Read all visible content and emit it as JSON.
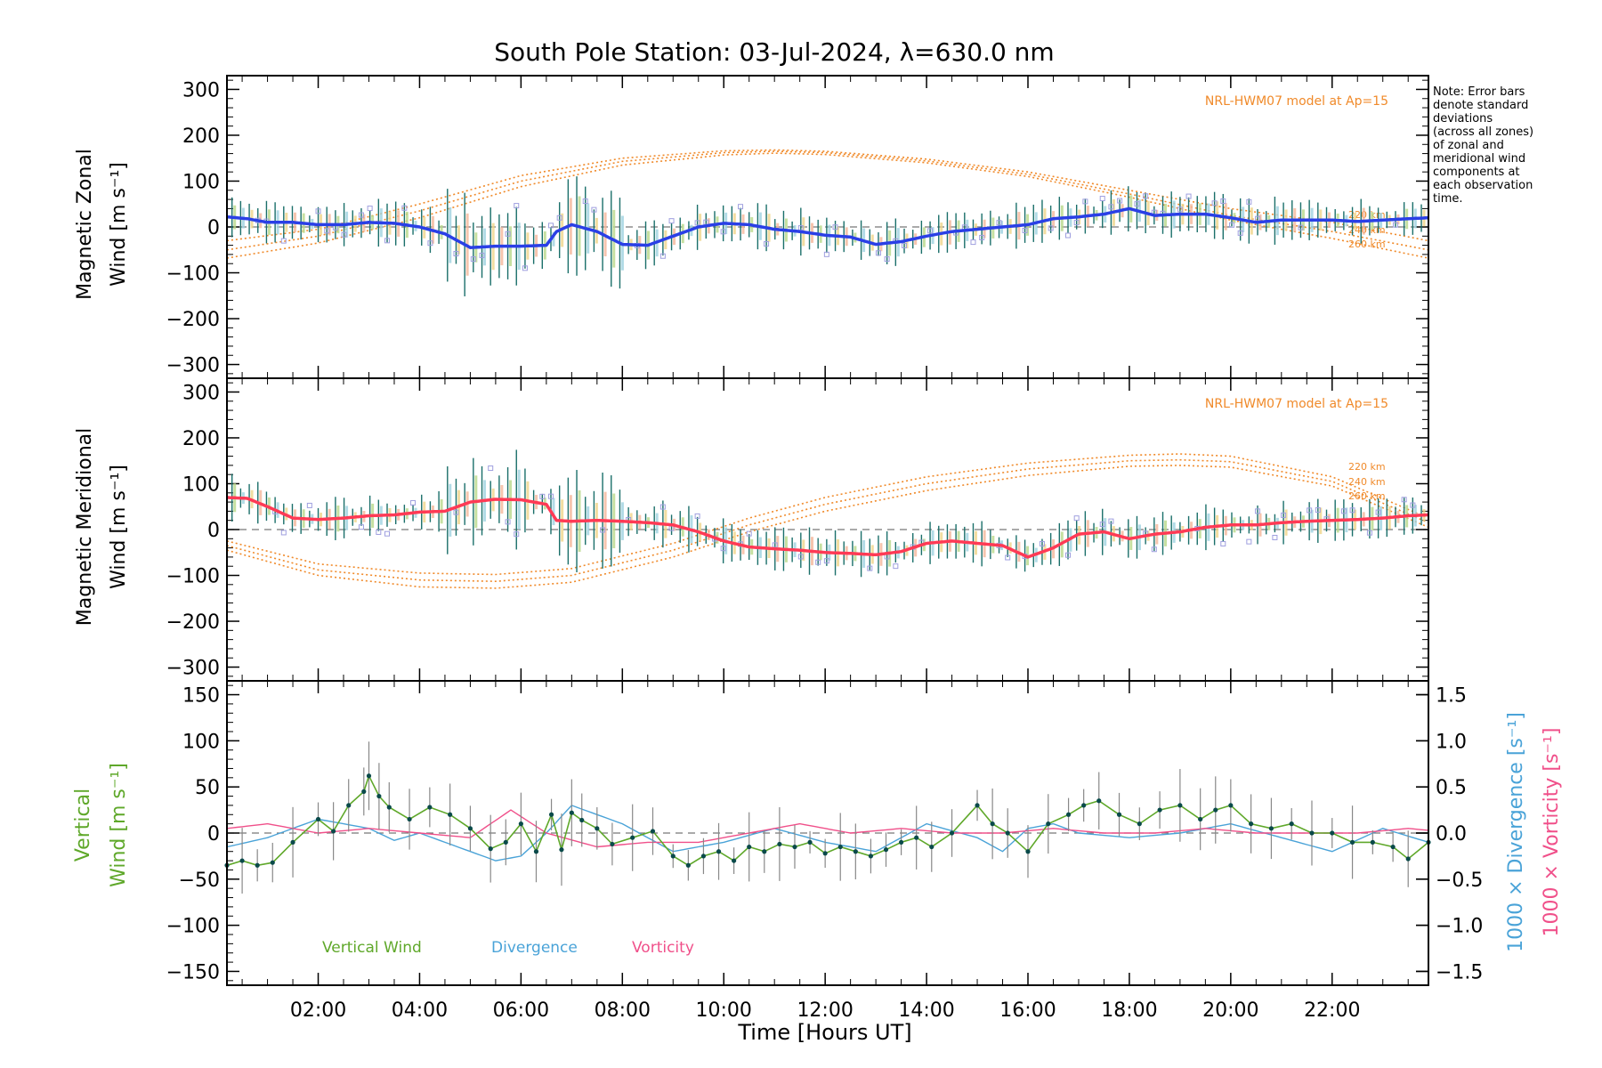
{
  "title": "South Pole Station: 03-Jul-2024, λ=630.0 nm",
  "note_lines": [
    "Note: Error bars",
    "denote standard",
    "deviations",
    "(across all zones)",
    "of zonal and",
    "meridional wind",
    "components at",
    "each observation",
    "time."
  ],
  "colors": {
    "zonal": "#2a3fe6",
    "zonal_light": "#4fa8d8",
    "meridional": "#ff3a55",
    "vertical": "#5fa82a",
    "divergence": "#4aa3d8",
    "vorticity": "#f0508a",
    "model": "#f08a2a",
    "points": "#9f9fdf",
    "markers": "#0a4a4a"
  },
  "chart_data": [
    {
      "type": "line",
      "title": "South Pole Station: 03-Jul-2024, λ=630.0 nm",
      "ylabel_lines": [
        "Magnetic Zonal",
        "Wind [m s⁻¹]"
      ],
      "xlabel": "",
      "ylim": [
        -330,
        330
      ],
      "yticks": [
        -300,
        -200,
        -100,
        0,
        100,
        200,
        300
      ],
      "ytick_labels": [
        "−300",
        "−200",
        "−100",
        "0",
        "100",
        "200",
        "300"
      ],
      "xlim": [
        0.2,
        23.9
      ],
      "model_label": "NRL-HWM07 model at Ap=15",
      "altitude_labels": [
        "220 km",
        "240 km",
        "260 km"
      ],
      "series": [
        {
          "name": "Magnetic Zonal Wind",
          "x": [
            0.2,
            0.6,
            1.0,
            1.5,
            2.0,
            2.5,
            3.0,
            3.5,
            4.0,
            4.5,
            5.0,
            5.5,
            6.0,
            6.5,
            6.7,
            7.0,
            7.5,
            8.0,
            8.5,
            9.0,
            9.5,
            10.0,
            10.5,
            11.0,
            11.5,
            12.0,
            12.5,
            13.0,
            13.5,
            14.0,
            14.5,
            15.0,
            15.5,
            16.0,
            16.5,
            17.0,
            17.5,
            18.0,
            18.5,
            19.0,
            19.5,
            20.0,
            20.5,
            21.0,
            21.5,
            22.0,
            22.5,
            23.0,
            23.5,
            23.9
          ],
          "values": [
            22,
            18,
            10,
            10,
            5,
            5,
            10,
            8,
            0,
            -15,
            -45,
            -42,
            -42,
            -40,
            -10,
            5,
            -10,
            -38,
            -40,
            -20,
            0,
            8,
            5,
            -5,
            -10,
            -18,
            -22,
            -38,
            -32,
            -20,
            -10,
            -5,
            0,
            5,
            18,
            22,
            28,
            40,
            25,
            28,
            28,
            20,
            10,
            15,
            15,
            15,
            12,
            15,
            18,
            20
          ]
        },
        {
          "name": "Model 220 km",
          "x": [
            0.2,
            2.0,
            4.0,
            6.0,
            8.0,
            10.0,
            11.0,
            12.0,
            14.0,
            16.0,
            18.0,
            20.0,
            22.0,
            23.9
          ],
          "values": [
            -30,
            -5,
            50,
            112,
            150,
            166,
            168,
            165,
            148,
            120,
            80,
            40,
            10,
            -30
          ]
        },
        {
          "name": "Model 240 km",
          "x": [
            0.2,
            2.0,
            4.0,
            6.0,
            8.0,
            10.0,
            11.0,
            12.0,
            14.0,
            16.0,
            18.0,
            20.0,
            22.0,
            23.9
          ],
          "values": [
            -50,
            -20,
            35,
            100,
            143,
            162,
            165,
            162,
            144,
            115,
            72,
            25,
            -10,
            -50
          ]
        },
        {
          "name": "Model 260 km",
          "x": [
            0.2,
            2.0,
            4.0,
            6.0,
            8.0,
            10.0,
            11.0,
            12.0,
            14.0,
            16.0,
            18.0,
            20.0,
            22.0,
            23.9
          ],
          "values": [
            -68,
            -35,
            20,
            88,
            135,
            157,
            161,
            158,
            140,
            110,
            65,
            15,
            -25,
            -68
          ]
        }
      ]
    },
    {
      "type": "line",
      "ylabel_lines": [
        "Magnetic Meridional",
        "Wind [m s⁻¹]"
      ],
      "ylim": [
        -330,
        330
      ],
      "yticks": [
        -300,
        -200,
        -100,
        0,
        100,
        200,
        300
      ],
      "ytick_labels": [
        "−300",
        "−200",
        "−100",
        "0",
        "100",
        "200",
        "300"
      ],
      "xlim": [
        0.2,
        23.9
      ],
      "model_label": "NRL-HWM07 model at Ap=15",
      "altitude_labels": [
        "220 km",
        "240 km",
        "260 km"
      ],
      "series": [
        {
          "name": "Magnetic Meridional Wind",
          "x": [
            0.2,
            0.6,
            1.0,
            1.5,
            2.0,
            2.5,
            3.0,
            3.5,
            4.0,
            4.5,
            5.0,
            5.5,
            6.0,
            6.5,
            6.7,
            7.0,
            7.5,
            8.0,
            8.5,
            9.0,
            9.5,
            10.0,
            10.5,
            11.0,
            11.5,
            12.0,
            12.5,
            13.0,
            13.5,
            14.0,
            14.5,
            15.0,
            15.5,
            16.0,
            16.5,
            17.0,
            17.5,
            18.0,
            18.5,
            19.0,
            19.5,
            20.0,
            20.5,
            21.0,
            21.5,
            22.0,
            22.5,
            23.0,
            23.5,
            23.9
          ],
          "values": [
            70,
            68,
            50,
            25,
            22,
            25,
            30,
            32,
            38,
            40,
            60,
            66,
            65,
            55,
            20,
            18,
            20,
            18,
            15,
            10,
            -5,
            -25,
            -38,
            -42,
            -45,
            -50,
            -52,
            -55,
            -48,
            -30,
            -25,
            -30,
            -35,
            -60,
            -40,
            -10,
            -5,
            -20,
            -10,
            -5,
            5,
            10,
            10,
            15,
            18,
            20,
            22,
            25,
            30,
            32
          ]
        },
        {
          "name": "Model 220 km",
          "x": [
            0.2,
            2.0,
            4.0,
            5.5,
            7.0,
            9.0,
            10.5,
            12.0,
            14.0,
            16.0,
            18.0,
            19.0,
            20.0,
            22.0,
            23.9
          ],
          "values": [
            -25,
            -75,
            -95,
            -98,
            -85,
            -30,
            25,
            70,
            115,
            145,
            162,
            165,
            160,
            115,
            25
          ]
        },
        {
          "name": "Model 240 km",
          "x": [
            0.2,
            2.0,
            4.0,
            5.5,
            7.0,
            9.0,
            10.5,
            12.0,
            14.0,
            16.0,
            18.0,
            19.0,
            20.0,
            22.0,
            23.9
          ],
          "values": [
            -35,
            -88,
            -110,
            -113,
            -100,
            -45,
            10,
            55,
            100,
            132,
            150,
            152,
            148,
            105,
            15
          ]
        },
        {
          "name": "Model 260 km",
          "x": [
            0.2,
            2.0,
            4.0,
            5.5,
            7.0,
            9.0,
            10.5,
            12.0,
            14.0,
            16.0,
            18.0,
            19.0,
            20.0,
            22.0,
            23.9
          ],
          "values": [
            -45,
            -100,
            -125,
            -128,
            -115,
            -60,
            -5,
            40,
            85,
            118,
            138,
            140,
            136,
            95,
            5
          ]
        }
      ]
    },
    {
      "type": "line",
      "xlabel": "Time [Hours UT]",
      "ylabel_lines": [
        "Vertical",
        "Wind [m s⁻¹]"
      ],
      "ylabel_right": [
        "1000 × Divergence [s⁻¹]",
        "1000 × Vorticity [s⁻¹]"
      ],
      "ylim": [
        -165,
        165
      ],
      "yticks": [
        -150,
        -100,
        -50,
        0,
        50,
        100,
        150
      ],
      "ytick_labels": [
        "−150",
        "−100",
        "−50",
        "0",
        "50",
        "100",
        "150"
      ],
      "ylim_right": [
        -1.65,
        1.65
      ],
      "yticks_right": [
        -1.5,
        -1.0,
        -0.5,
        0.0,
        0.5,
        1.0,
        1.5
      ],
      "ytick_labels_right": [
        "−1.5",
        "−1.0",
        "−0.5",
        "0.0",
        "0.5",
        "1.0",
        "1.5"
      ],
      "xlim": [
        0.2,
        23.9
      ],
      "xticks": [
        2,
        4,
        6,
        8,
        10,
        12,
        14,
        16,
        18,
        20,
        22
      ],
      "xtick_labels": [
        "02:00",
        "04:00",
        "06:00",
        "08:00",
        "10:00",
        "12:00",
        "14:00",
        "16:00",
        "18:00",
        "20:00",
        "22:00"
      ],
      "legend": [
        "Vertical Wind",
        "Divergence",
        "Vorticity"
      ],
      "series": [
        {
          "name": "Vertical Wind",
          "x": [
            0.2,
            0.5,
            0.8,
            1.1,
            1.5,
            2.0,
            2.3,
            2.6,
            2.9,
            3.0,
            3.2,
            3.4,
            3.8,
            4.2,
            4.6,
            5.0,
            5.4,
            5.7,
            6.0,
            6.3,
            6.6,
            6.8,
            7.0,
            7.2,
            7.5,
            7.8,
            8.2,
            8.6,
            9.0,
            9.3,
            9.6,
            9.9,
            10.2,
            10.5,
            10.8,
            11.1,
            11.4,
            11.7,
            12.0,
            12.3,
            12.6,
            12.9,
            13.2,
            13.5,
            13.8,
            14.1,
            14.5,
            15.0,
            15.3,
            15.6,
            16.0,
            16.4,
            16.8,
            17.1,
            17.4,
            17.8,
            18.2,
            18.6,
            19.0,
            19.4,
            19.7,
            20.0,
            20.4,
            20.8,
            21.2,
            21.6,
            22.0,
            22.4,
            22.8,
            23.2,
            23.5,
            23.9
          ],
          "values": [
            -35,
            -30,
            -35,
            -32,
            -10,
            15,
            2,
            30,
            45,
            62,
            40,
            28,
            15,
            28,
            20,
            5,
            -17,
            -10,
            10,
            -20,
            20,
            -18,
            22,
            14,
            5,
            -12,
            -5,
            2,
            -25,
            -35,
            -25,
            -20,
            -30,
            -15,
            -20,
            -12,
            -15,
            -10,
            -22,
            -15,
            -20,
            -25,
            -18,
            -10,
            -5,
            -15,
            0,
            30,
            10,
            0,
            -20,
            10,
            20,
            30,
            35,
            20,
            10,
            25,
            30,
            15,
            25,
            30,
            10,
            5,
            10,
            0,
            0,
            -10,
            -10,
            -15,
            -28,
            -10
          ]
        },
        {
          "name": "Divergence",
          "x": [
            0.2,
            1.0,
            2.0,
            3.0,
            3.5,
            4.0,
            5.0,
            5.5,
            6.0,
            6.5,
            7.0,
            7.5,
            8.0,
            9.0,
            10.0,
            11.0,
            12.0,
            13.0,
            14.0,
            15.0,
            15.5,
            16.0,
            16.5,
            17.0,
            18.0,
            19.0,
            20.0,
            21.0,
            22.0,
            23.0,
            23.9
          ],
          "values": [
            -0.15,
            -0.05,
            0.15,
            0.05,
            -0.08,
            0.0,
            -0.2,
            -0.3,
            -0.25,
            0.0,
            0.3,
            0.2,
            0.1,
            -0.2,
            -0.1,
            0.05,
            -0.1,
            -0.2,
            0.1,
            -0.05,
            -0.2,
            0.05,
            0.1,
            0.0,
            -0.05,
            0.0,
            0.1,
            -0.05,
            -0.2,
            0.05,
            -0.1
          ]
        },
        {
          "name": "Vorticity",
          "x": [
            0.2,
            1.0,
            2.0,
            3.0,
            4.0,
            5.0,
            5.8,
            6.5,
            7.5,
            8.5,
            9.5,
            10.5,
            11.5,
            12.5,
            13.5,
            14.5,
            15.5,
            16.5,
            17.5,
            18.5,
            19.5,
            20.5,
            21.5,
            22.5,
            23.5,
            23.9
          ],
          "values": [
            0.05,
            0.1,
            0.0,
            0.05,
            0.0,
            -0.05,
            0.25,
            0.0,
            -0.15,
            -0.1,
            -0.1,
            0.0,
            0.1,
            0.0,
            0.05,
            0.0,
            0.0,
            0.05,
            0.0,
            0.0,
            0.05,
            0.0,
            0.0,
            0.0,
            0.05,
            0.03
          ]
        }
      ]
    }
  ]
}
